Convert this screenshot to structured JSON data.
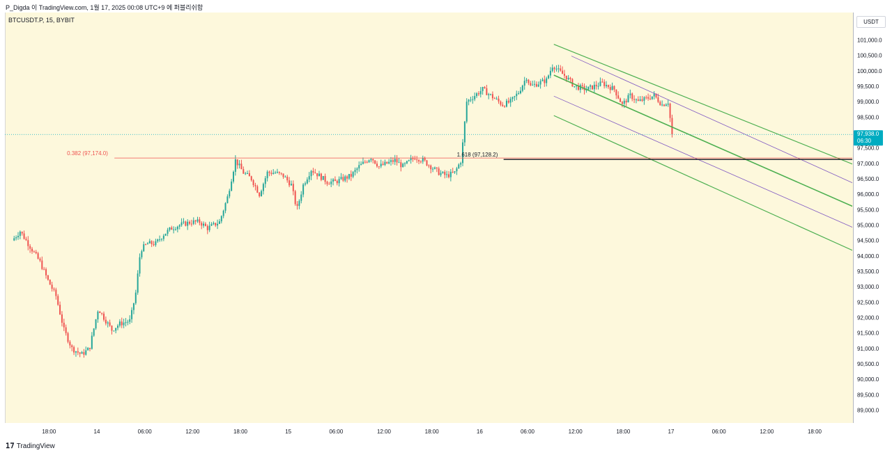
{
  "header": {
    "credit": "P_Digda 이 TradingView.com, 1월 17, 2025 00:08 UTC+9 에 퍼블리쉬함"
  },
  "symbol": "BTCUSDT.P, 15, BYBIT",
  "currency": "USDT",
  "footer": {
    "brand": "TradingView"
  },
  "colors": {
    "up": "#26a69a",
    "down": "#ef5350",
    "background": "#fdf8dc",
    "channel": "#4caf50",
    "median": "#7e57c2",
    "fib": "#ef5350",
    "level": "#131722",
    "price_badge": "#00acc1"
  },
  "chart_data": {
    "type": "candlestick",
    "title": "BTCUSDT.P, 15, BYBIT",
    "ylim": [
      88500,
      101500
    ],
    "y_ticks": [
      101000,
      100500,
      100000,
      99500,
      99000,
      98500,
      98000,
      97500,
      97000,
      96500,
      96000,
      95500,
      95000,
      94500,
      94000,
      93500,
      93000,
      92500,
      92000,
      91500,
      91000,
      90500,
      90000,
      89500,
      89000
    ],
    "y_tick_labels": [
      "101,000.0",
      "100,500.0",
      "100,000.0",
      "99,500.0",
      "99,000.0",
      "98,500.0",
      "98,000.0",
      "97,500.0",
      "97,000.0",
      "96,500.0",
      "96,000.0",
      "95,500.0",
      "95,000.0",
      "94,500.0",
      "94,000.0",
      "93,500.0",
      "93,000.0",
      "92,500.0",
      "92,000.0",
      "91,500.0",
      "91,000.0",
      "90,500.0",
      "90,000.0",
      "89,500.0",
      "89,000.0"
    ],
    "x_ticks": [
      "18:00",
      "14",
      "06:00",
      "12:00",
      "18:00",
      "15",
      "06:00",
      "12:00",
      "18:00",
      "16",
      "06:00",
      "12:00",
      "18:00",
      "17",
      "06:00",
      "12:00",
      "18:00"
    ],
    "x_tick_hours": [
      -6,
      0,
      6,
      12,
      18,
      24,
      30,
      36,
      42,
      48,
      54,
      60,
      66,
      72,
      78,
      84,
      90
    ],
    "x_range_hours": [
      -10.6,
      95.0
    ],
    "current_price": {
      "value": 97938.0,
      "label": "97,938.0",
      "countdown": "06:30"
    },
    "annotations": [
      {
        "type": "hline",
        "label": "0.382 (97,174.0)",
        "y": 97174.0,
        "x_start": 2.2,
        "color": "fib"
      },
      {
        "type": "hline",
        "label": "1.618 (97,128.2)",
        "y": 97128.2,
        "x_start": 51.0,
        "color": "level"
      }
    ],
    "channel": {
      "upper": [
        [
          57.3,
          100860
        ],
        [
          95.0,
          96950
        ]
      ],
      "mid": [
        [
          57.3,
          99860
        ],
        [
          95.0,
          95580
        ]
      ],
      "lower": [
        [
          57.3,
          98550
        ],
        [
          95.0,
          94150
        ]
      ],
      "median_upper": [
        [
          59.5,
          100480
        ],
        [
          95.0,
          96340
        ]
      ],
      "median_lower": [
        [
          57.3,
          99180
        ],
        [
          95.0,
          94900
        ]
      ]
    },
    "ohlc_keypoints": [
      [
        -10.5,
        94500
      ],
      [
        -9.5,
        94800
      ],
      [
        -8.0,
        94200
      ],
      [
        -7.0,
        93800
      ],
      [
        -6.0,
        93200
      ],
      [
        -5.0,
        92700
      ],
      [
        -4.0,
        91600
      ],
      [
        -3.0,
        91000
      ],
      [
        -1.8,
        90800
      ],
      [
        -0.8,
        91000
      ],
      [
        0.3,
        92300
      ],
      [
        1.0,
        92000
      ],
      [
        2.0,
        91600
      ],
      [
        3.0,
        91800
      ],
      [
        4.3,
        91900
      ],
      [
        5.0,
        92800
      ],
      [
        5.6,
        94200
      ],
      [
        6.5,
        94400
      ],
      [
        7.5,
        94400
      ],
      [
        8.5,
        94700
      ],
      [
        9.5,
        94900
      ],
      [
        10.5,
        95000
      ],
      [
        12.0,
        95100
      ],
      [
        13.0,
        95100
      ],
      [
        14.0,
        94900
      ],
      [
        15.5,
        95100
      ],
      [
        16.5,
        95900
      ],
      [
        17.5,
        97100
      ],
      [
        18.5,
        96700
      ],
      [
        19.5,
        96500
      ],
      [
        20.5,
        96000
      ],
      [
        21.5,
        96700
      ],
      [
        22.5,
        96700
      ],
      [
        23.5,
        96600
      ],
      [
        24.5,
        96300
      ],
      [
        25.2,
        95500
      ],
      [
        26.0,
        96300
      ],
      [
        27.0,
        96800
      ],
      [
        28.0,
        96600
      ],
      [
        29.0,
        96400
      ],
      [
        30.0,
        96400
      ],
      [
        31.0,
        96500
      ],
      [
        32.0,
        96600
      ],
      [
        33.0,
        96900
      ],
      [
        34.5,
        97200
      ],
      [
        35.5,
        96900
      ],
      [
        36.5,
        97000
      ],
      [
        37.5,
        97100
      ],
      [
        38.5,
        96900
      ],
      [
        40.0,
        97200
      ],
      [
        41.0,
        97100
      ],
      [
        42.0,
        96900
      ],
      [
        43.0,
        96700
      ],
      [
        44.0,
        96600
      ],
      [
        45.0,
        96700
      ],
      [
        45.8,
        97100
      ],
      [
        46.5,
        99000
      ],
      [
        47.5,
        99200
      ],
      [
        48.5,
        99400
      ],
      [
        50.0,
        99100
      ],
      [
        51.0,
        98900
      ],
      [
        52.0,
        99000
      ],
      [
        53.0,
        99300
      ],
      [
        54.0,
        99800
      ],
      [
        54.5,
        99500
      ],
      [
        55.5,
        99600
      ],
      [
        56.5,
        99700
      ],
      [
        57.3,
        100200
      ],
      [
        58.0,
        100000
      ],
      [
        59.0,
        99800
      ],
      [
        60.0,
        99500
      ],
      [
        61.5,
        99400
      ],
      [
        62.5,
        99500
      ],
      [
        63.5,
        99600
      ],
      [
        65.0,
        99400
      ],
      [
        66.0,
        98900
      ],
      [
        67.0,
        99200
      ],
      [
        68.0,
        99000
      ],
      [
        69.0,
        99100
      ],
      [
        70.0,
        99200
      ],
      [
        71.0,
        98900
      ],
      [
        71.8,
        99000
      ],
      [
        72.2,
        97938
      ]
    ]
  }
}
